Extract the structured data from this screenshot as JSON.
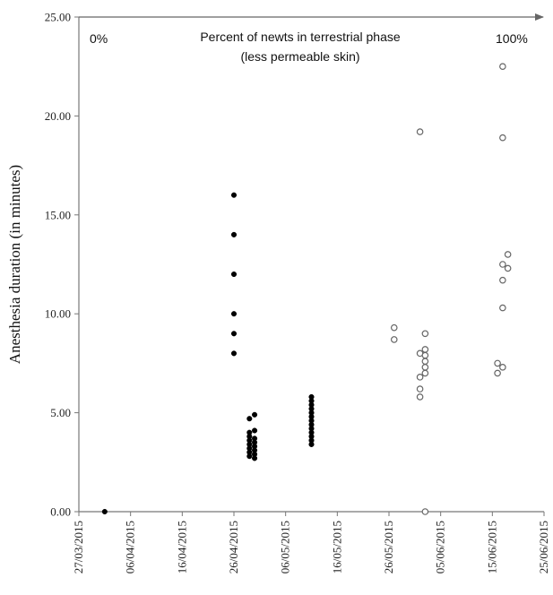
{
  "chart_data": {
    "type": "scatter",
    "title": "",
    "xlabel": "",
    "ylabel": "Anesthesia duration (in minutes)",
    "ylim": [
      0,
      25
    ],
    "y_ticks": [
      "0.00",
      "5.00",
      "10.00",
      "15.00",
      "20.00",
      "25.00"
    ],
    "xlim": [
      "2015-03-27",
      "2015-06-25"
    ],
    "x_ticks": [
      "27/03/2015",
      "06/04/2015",
      "16/04/2015",
      "26/04/2015",
      "06/05/2015",
      "16/05/2015",
      "26/05/2015",
      "05/06/2015",
      "15/06/2015",
      "25/06/2015"
    ],
    "grid": false,
    "legend": "none",
    "annotations": {
      "arrow_title": "Percent of newts in terrestrial phase",
      "arrow_subtitle": "(less permeable skin)",
      "start_pct": "0%",
      "end_pct": "100%"
    },
    "series": [
      {
        "marker": "filled",
        "color": "#000000",
        "points": [
          {
            "x": "2015-04-01",
            "y": 0.0
          },
          {
            "x": "2015-04-26",
            "y": 16.0
          },
          {
            "x": "2015-04-26",
            "y": 14.0
          },
          {
            "x": "2015-04-26",
            "y": 12.0
          },
          {
            "x": "2015-04-26",
            "y": 10.0
          },
          {
            "x": "2015-04-26",
            "y": 9.0
          },
          {
            "x": "2015-04-26",
            "y": 8.0
          },
          {
            "x": "2015-04-29",
            "y": 4.7
          },
          {
            "x": "2015-04-29",
            "y": 4.0
          },
          {
            "x": "2015-04-29",
            "y": 3.8
          },
          {
            "x": "2015-04-29",
            "y": 3.6
          },
          {
            "x": "2015-04-29",
            "y": 3.4
          },
          {
            "x": "2015-04-29",
            "y": 3.2
          },
          {
            "x": "2015-04-29",
            "y": 3.0
          },
          {
            "x": "2015-04-29",
            "y": 2.8
          },
          {
            "x": "2015-04-30",
            "y": 4.9
          },
          {
            "x": "2015-04-30",
            "y": 4.1
          },
          {
            "x": "2015-04-30",
            "y": 3.7
          },
          {
            "x": "2015-04-30",
            "y": 3.5
          },
          {
            "x": "2015-04-30",
            "y": 3.3
          },
          {
            "x": "2015-04-30",
            "y": 3.1
          },
          {
            "x": "2015-04-30",
            "y": 2.9
          },
          {
            "x": "2015-04-30",
            "y": 2.7
          },
          {
            "x": "2015-05-11",
            "y": 5.8
          },
          {
            "x": "2015-05-11",
            "y": 5.6
          },
          {
            "x": "2015-05-11",
            "y": 5.4
          },
          {
            "x": "2015-05-11",
            "y": 5.2
          },
          {
            "x": "2015-05-11",
            "y": 5.0
          },
          {
            "x": "2015-05-11",
            "y": 4.8
          },
          {
            "x": "2015-05-11",
            "y": 4.6
          },
          {
            "x": "2015-05-11",
            "y": 4.4
          },
          {
            "x": "2015-05-11",
            "y": 4.2
          },
          {
            "x": "2015-05-11",
            "y": 4.0
          },
          {
            "x": "2015-05-11",
            "y": 3.8
          },
          {
            "x": "2015-05-11",
            "y": 3.6
          },
          {
            "x": "2015-05-11",
            "y": 3.4
          }
        ]
      },
      {
        "marker": "open",
        "color": "#666666",
        "points": [
          {
            "x": "2015-05-27",
            "y": 9.3
          },
          {
            "x": "2015-05-27",
            "y": 8.7
          },
          {
            "x": "2015-06-01",
            "y": 19.2
          },
          {
            "x": "2015-06-01",
            "y": 8.0
          },
          {
            "x": "2015-06-01",
            "y": 6.8
          },
          {
            "x": "2015-06-01",
            "y": 6.2
          },
          {
            "x": "2015-06-01",
            "y": 5.8
          },
          {
            "x": "2015-06-02",
            "y": 9.0
          },
          {
            "x": "2015-06-02",
            "y": 8.2
          },
          {
            "x": "2015-06-02",
            "y": 7.9
          },
          {
            "x": "2015-06-02",
            "y": 7.6
          },
          {
            "x": "2015-06-02",
            "y": 7.3
          },
          {
            "x": "2015-06-02",
            "y": 7.0
          },
          {
            "x": "2015-06-02",
            "y": 0.0
          },
          {
            "x": "2015-06-16",
            "y": 7.5
          },
          {
            "x": "2015-06-16",
            "y": 7.0
          },
          {
            "x": "2015-06-17",
            "y": 22.5
          },
          {
            "x": "2015-06-17",
            "y": 18.9
          },
          {
            "x": "2015-06-17",
            "y": 12.5
          },
          {
            "x": "2015-06-17",
            "y": 11.7
          },
          {
            "x": "2015-06-17",
            "y": 10.3
          },
          {
            "x": "2015-06-17",
            "y": 7.3
          },
          {
            "x": "2015-06-18",
            "y": 13.0
          },
          {
            "x": "2015-06-18",
            "y": 12.3
          }
        ]
      }
    ]
  }
}
